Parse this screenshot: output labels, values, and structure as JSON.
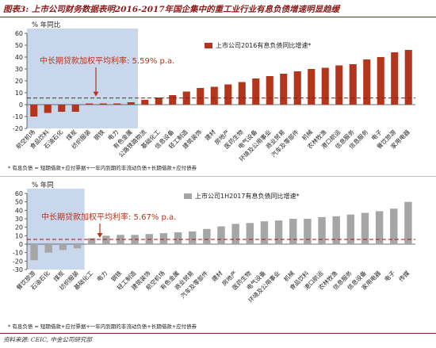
{
  "title": "图表3: 上市公司财务数据表明2016-2017年国企集中的重工业行业有息负债增速明显趋缓",
  "source": "资料来源: CEIC, 中金公司研究部",
  "colors": {
    "bar1": "#b3351c",
    "bar2": "#a6a6a6",
    "highlight": "#c9d7ec",
    "refline": "#8b1a1a",
    "annotation": "#b3351c"
  },
  "chart_data": [
    {
      "type": "bar",
      "unit_label": "% 年同比",
      "legend": "上市公司2016有息负债同比增速*",
      "categories": [
        "航空机场",
        "食品饮料",
        "石油石化",
        "煤炭",
        "纺织服装",
        "钢铁",
        "电力",
        "有色金属",
        "公路铁路物流",
        "基础化工",
        "信息设备",
        "轻工制造",
        "建筑装饰",
        "建材",
        "房地产",
        "医药生物",
        "电气设备",
        "环境及公用事业",
        "商业贸易",
        "汽车及零部件",
        "机械",
        "农林牧渔",
        "港口航运",
        "信息服务",
        "信息服务",
        "电子",
        "餐饮旅游",
        "家用电器"
      ],
      "values": [
        -10,
        -7,
        -6,
        -6,
        1,
        1,
        1,
        2,
        4,
        6,
        8,
        11,
        14,
        15,
        17,
        19,
        22,
        24,
        26,
        28,
        30,
        31,
        33,
        34,
        38,
        40,
        44,
        46
      ],
      "highlight_count": 8,
      "reference_value": 5.59,
      "reference_label": "中长期贷款加权平均利率: 5.59% p.a.",
      "ylim": [
        -20,
        60
      ],
      "yticks": [
        -20,
        -10,
        0,
        10,
        20,
        30,
        40,
        50,
        60
      ],
      "footnote": "* 有息负债 = 短期借款+应付票据+一年内到期的非流动负债+长期借款+应付债券"
    },
    {
      "type": "bar",
      "unit_label": "% 年同",
      "legend": "上市公司1H2017有息负债同比增速*",
      "categories": [
        "餐饮旅游",
        "石油石化",
        "煤炭",
        "纺织服装",
        "基础化工",
        "电力",
        "钢铁",
        "轻工制造",
        "建筑装饰",
        "航空机场",
        "有色金属",
        "商业贸易",
        "汽车及零部件",
        "建材",
        "房地产",
        "医药生物",
        "电气设备",
        "环境及公用事业",
        "机械",
        "食品饮料",
        "港口航运",
        "农林牧渔",
        "信息服务",
        "信息设备",
        "家用电器",
        "电子",
        "传媒"
      ],
      "values": [
        -19,
        -10,
        -7,
        -5,
        7,
        10,
        11,
        11,
        12,
        13,
        14,
        15,
        18,
        21,
        24,
        25,
        27,
        28,
        30,
        30,
        32,
        33,
        35,
        37,
        39,
        42,
        50
      ],
      "highlight_count": 4,
      "reference_value": 5.67,
      "reference_label": "中长期贷款加权平均利率: 5.67% p.a.",
      "ylim": [
        -30,
        60
      ],
      "yticks": [
        -30,
        -20,
        -10,
        0,
        10,
        20,
        30,
        40,
        50,
        60
      ],
      "footnote": "* 有息负债 = 短期借款+应付票据+一年内到期的非流动负债+长期借款+应付债券"
    }
  ]
}
